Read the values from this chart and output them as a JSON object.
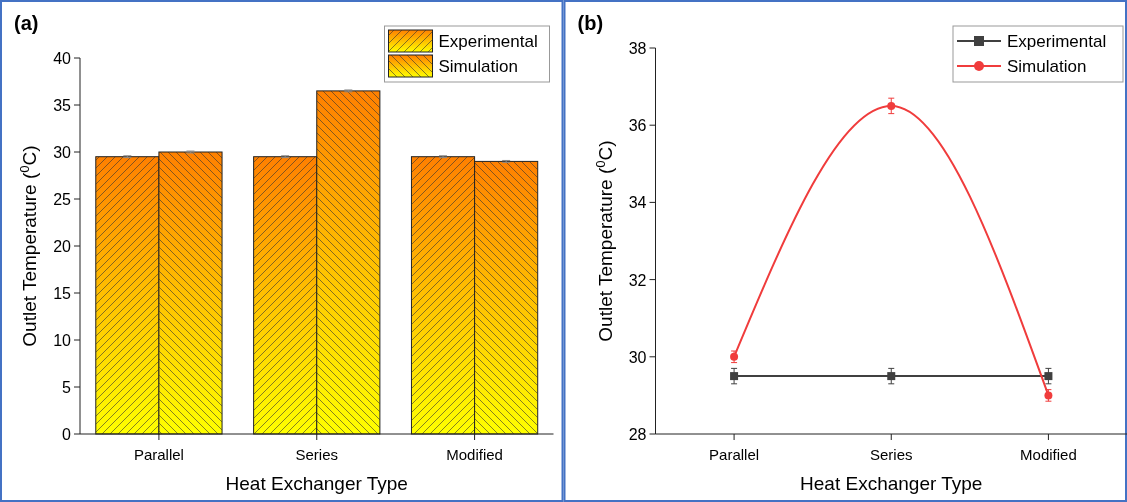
{
  "chart_data": [
    {
      "type": "bar",
      "title": "(a)",
      "xlabel": "Heat Exchanger Type",
      "ylabel": "Outlet Temperature ($^{0}$C)",
      "categories": [
        "Parallel",
        "Series",
        "Modified"
      ],
      "series": [
        {
          "name": "Experimental",
          "color": "#ff8000",
          "values": [
            29.5,
            29.5,
            29.5
          ],
          "errors": [
            0.1,
            0.1,
            0.1
          ]
        },
        {
          "name": "Simulation",
          "color": "#ff8000",
          "values": [
            30,
            36.5,
            29
          ],
          "errors": [
            0.1,
            0.1,
            0.1
          ]
        }
      ],
      "ylim": [
        0,
        40
      ],
      "yticks": [
        0,
        5,
        10,
        15,
        20,
        25,
        30,
        35,
        40
      ],
      "legend": "top right",
      "grid": false
    },
    {
      "type": "line",
      "title": "(b)",
      "xlabel": "Heat Exchanger Type",
      "ylabel": "Outlet Temperature ($^{0}$C)",
      "categories": [
        "Parallel",
        "Series",
        "Modified"
      ],
      "series": [
        {
          "name": "Experimental",
          "color": "#404040",
          "values": [
            29.5,
            29.5,
            29.5
          ],
          "errors": [
            0.2,
            0.2,
            0.2
          ],
          "marker": "square"
        },
        {
          "name": "Simulation",
          "color": "#f03c3c",
          "values": [
            30,
            36.5,
            29
          ],
          "errors": [
            0.15,
            0.2,
            0.15
          ],
          "marker": "circle"
        }
      ],
      "ylim": [
        28,
        38
      ],
      "yticks": [
        28,
        30,
        32,
        34,
        36,
        38
      ],
      "legend": "top right",
      "grid": false
    }
  ]
}
